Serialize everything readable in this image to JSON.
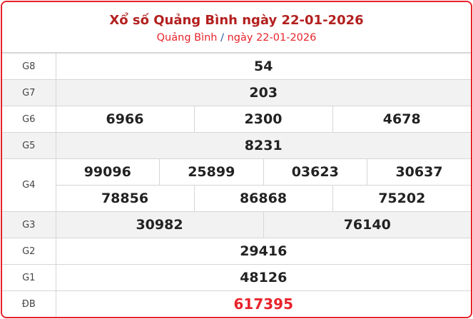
{
  "header": {
    "title": "Xổ số Quảng Bình ngày 22-01-2026",
    "crumb_place": "Quảng Bình",
    "crumb_sep": "/",
    "crumb_date": "ngày 22-01-2026"
  },
  "prizes": [
    {
      "label": "G8",
      "numbers": [
        "54"
      ]
    },
    {
      "label": "G7",
      "numbers": [
        "203"
      ]
    },
    {
      "label": "G6",
      "numbers": [
        "6966",
        "2300",
        "4678"
      ]
    },
    {
      "label": "G5",
      "numbers": [
        "8231"
      ]
    },
    {
      "label": "G4",
      "numbers": [
        "99096",
        "25899",
        "03623",
        "30637",
        "78856",
        "86868",
        "75202"
      ]
    },
    {
      "label": "G3",
      "numbers": [
        "30982",
        "76140"
      ]
    },
    {
      "label": "G2",
      "numbers": [
        "29416"
      ]
    },
    {
      "label": "G1",
      "numbers": [
        "48126"
      ]
    },
    {
      "label": "ĐB",
      "numbers": [
        "617395"
      ]
    }
  ],
  "colors": {
    "accent": "#e8232a",
    "title": "#b3201f"
  }
}
